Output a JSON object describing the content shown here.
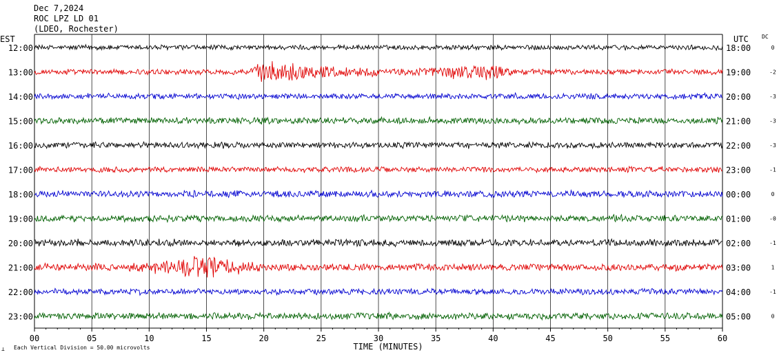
{
  "header": {
    "date": "Dec 7,2024",
    "station": "ROC LPZ LD 01",
    "network": "(LDEO, Rochester)"
  },
  "labels": {
    "left_zone": "EST",
    "right_zone": "UTC",
    "dc_header": "DC",
    "x_axis_title": "TIME (MINUTES)",
    "scale_note": "Each Vertical Division =   50.00 microvolts",
    "corner_mark": "⟂"
  },
  "colors": {
    "cycle": [
      "#000000",
      "#e00000",
      "#0000d0",
      "#006000"
    ],
    "grid": "#000000"
  },
  "chart_data": {
    "type": "line",
    "title": "ROC LPZ LD 01",
    "xlabel": "TIME (MINUTES)",
    "xlim": [
      0,
      60
    ],
    "x_ticks": [
      "00",
      "05",
      "10",
      "15",
      "20",
      "25",
      "30",
      "35",
      "40",
      "45",
      "50",
      "55",
      "60"
    ],
    "grid_vertical": true,
    "traces": [
      {
        "est": "12:00",
        "utc": "18:00",
        "dc": "0",
        "amp": 1.0,
        "events": []
      },
      {
        "est": "13:00",
        "utc": "19:00",
        "dc": "-2",
        "amp": 1.1,
        "events": [
          {
            "start": 18.5,
            "end": 30,
            "peak": 20.5,
            "amp": 4.2
          },
          {
            "start": 31,
            "end": 42,
            "peak": 40.5,
            "amp": 3.2
          }
        ]
      },
      {
        "est": "14:00",
        "utc": "20:00",
        "dc": "-3",
        "amp": 1.1,
        "events": []
      },
      {
        "est": "15:00",
        "utc": "21:00",
        "dc": "-3",
        "amp": 1.3,
        "events": []
      },
      {
        "est": "16:00",
        "utc": "22:00",
        "dc": "-3",
        "amp": 1.2,
        "events": []
      },
      {
        "est": "17:00",
        "utc": "23:00",
        "dc": "-1",
        "amp": 1.1,
        "events": []
      },
      {
        "est": "18:00",
        "utc": "00:00",
        "dc": "0",
        "amp": 1.3,
        "events": []
      },
      {
        "est": "19:00",
        "utc": "01:00",
        "dc": "-0",
        "amp": 1.3,
        "events": []
      },
      {
        "est": "20:00",
        "utc": "02:00",
        "dc": "-1",
        "amp": 1.4,
        "events": []
      },
      {
        "est": "21:00",
        "utc": "03:00",
        "dc": "1",
        "amp": 1.4,
        "events": [
          {
            "start": 8,
            "end": 20,
            "peak": 15,
            "amp": 3.5
          }
        ]
      },
      {
        "est": "22:00",
        "utc": "04:00",
        "dc": "-1",
        "amp": 1.2,
        "events": []
      },
      {
        "est": "23:00",
        "utc": "05:00",
        "dc": "0",
        "amp": 1.3,
        "events": []
      }
    ]
  }
}
